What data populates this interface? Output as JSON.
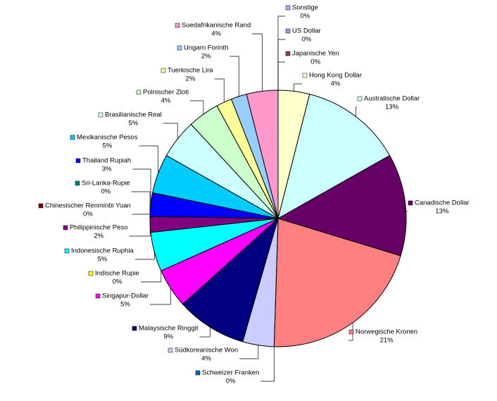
{
  "chart_data": {
    "type": "pie",
    "categories": [
      "Sonstige",
      "US Dollar",
      "Japanische Yen",
      "Hong Kong Dollar",
      "Australische Dollar",
      "Canadische Dollar",
      "Norwegische Kronen",
      "Schweizer Franken",
      "Südkoreanische Won",
      "Malaysische Ringgit",
      "Singapur-Dollar",
      "Indische Rupie",
      "Indonesische Ruphia",
      "Philippinische Peso",
      "Chinesischer Renminbi Yuan",
      "Sri-Lanka-Rupie",
      "Thailand Rupiah",
      "Mexikanische Pesos",
      "Brasilianische Real",
      "Polnischer Zloti",
      "Tuerkische Lira",
      "Ungarn Forinth",
      "Suedafrikanische Rand"
    ],
    "values": [
      0,
      0,
      0,
      4,
      13,
      13,
      21,
      0,
      4,
      9,
      5,
      0,
      5,
      2,
      0,
      0,
      3,
      5,
      5,
      4,
      2,
      2,
      4
    ],
    "value_labels": [
      "0%",
      "0%",
      "0%",
      "4%",
      "13%",
      "13%",
      "21%",
      "0%",
      "4%",
      "9%",
      "5%",
      "0%",
      "5%",
      "2%",
      "0%",
      "0%",
      "3%",
      "5%",
      "5%",
      "4%",
      "2%",
      "2%",
      "4%"
    ],
    "colors": [
      "#CC99FF",
      "#9999FF",
      "#993366",
      "#FFFFCC",
      "#CCFFFF",
      "#660066",
      "#FF8080",
      "#0066CC",
      "#CCCCFF",
      "#000080",
      "#FF00FF",
      "#FFFF00",
      "#00FFFF",
      "#800080",
      "#800000",
      "#008080",
      "#0000FF",
      "#00CCFF",
      "#CCFFFF",
      "#CCFFCC",
      "#FFFF99",
      "#99CCFF",
      "#FF99CC"
    ]
  }
}
